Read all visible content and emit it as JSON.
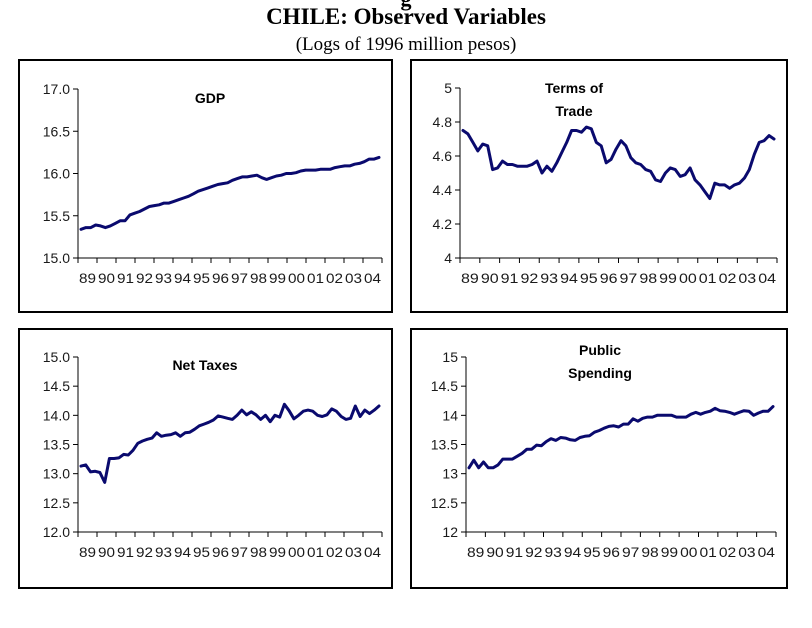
{
  "figure": {
    "title": "CHILE:  Observed Variables",
    "subtitle": "(Logs of 1996 million pesos)",
    "cut_title_fragment": "g",
    "line_color": "#0a0a6e"
  },
  "chart_data": [
    {
      "type": "line",
      "title_lines": [
        "GDP"
      ],
      "xlabel": "",
      "ylabel": "",
      "ylim": [
        15.0,
        17.0
      ],
      "yticks": [
        "15.0",
        "15.5",
        "16.0",
        "16.5",
        "17.0"
      ],
      "ytick_values": [
        15.0,
        15.5,
        16.0,
        16.5,
        17.0
      ],
      "xtick_labels": [
        "89",
        "90",
        "91",
        "92",
        "93",
        "94",
        "95",
        "96",
        "97",
        "98",
        "99",
        "00",
        "01",
        "02",
        "03",
        "04"
      ],
      "frequency": "quarterly",
      "x_start": "1989Q1",
      "series": [
        {
          "name": "GDP",
          "values": [
            15.34,
            15.36,
            15.36,
            15.39,
            15.38,
            15.36,
            15.38,
            15.41,
            15.44,
            15.44,
            15.51,
            15.53,
            15.55,
            15.58,
            15.61,
            15.62,
            15.63,
            15.65,
            15.65,
            15.67,
            15.69,
            15.71,
            15.73,
            15.76,
            15.79,
            15.81,
            15.83,
            15.85,
            15.87,
            15.88,
            15.89,
            15.92,
            15.94,
            15.96,
            15.96,
            15.97,
            15.98,
            15.95,
            15.93,
            15.95,
            15.97,
            15.98,
            16.0,
            16.0,
            16.01,
            16.03,
            16.04,
            16.04,
            16.04,
            16.05,
            16.05,
            16.05,
            16.07,
            16.08,
            16.09,
            16.09,
            16.11,
            16.12,
            16.14,
            16.17,
            16.17,
            16.19
          ]
        }
      ]
    },
    {
      "type": "line",
      "title_lines": [
        "Terms of",
        "Trade"
      ],
      "xlabel": "",
      "ylabel": "",
      "ylim": [
        4.0,
        5.0
      ],
      "yticks": [
        "4",
        "4.2",
        "4.4",
        "4.6",
        "4.8",
        "5"
      ],
      "ytick_values": [
        4.0,
        4.2,
        4.4,
        4.6,
        4.8,
        5.0
      ],
      "xtick_labels": [
        "89",
        "90",
        "91",
        "92",
        "93",
        "94",
        "95",
        "96",
        "97",
        "98",
        "99",
        "00",
        "01",
        "02",
        "03",
        "04"
      ],
      "frequency": "quarterly",
      "x_start": "1989Q1",
      "series": [
        {
          "name": "Terms of Trade",
          "values": [
            4.75,
            4.73,
            4.68,
            4.63,
            4.67,
            4.66,
            4.52,
            4.53,
            4.57,
            4.55,
            4.55,
            4.54,
            4.54,
            4.54,
            4.55,
            4.57,
            4.5,
            4.54,
            4.51,
            4.56,
            4.62,
            4.68,
            4.75,
            4.75,
            4.74,
            4.77,
            4.76,
            4.68,
            4.66,
            4.56,
            4.58,
            4.64,
            4.69,
            4.66,
            4.59,
            4.56,
            4.55,
            4.52,
            4.51,
            4.46,
            4.45,
            4.5,
            4.53,
            4.52,
            4.48,
            4.49,
            4.53,
            4.46,
            4.43,
            4.39,
            4.35,
            4.44,
            4.43,
            4.43,
            4.41,
            4.43,
            4.44,
            4.47,
            4.52,
            4.61,
            4.68,
            4.69,
            4.72,
            4.7
          ]
        }
      ]
    },
    {
      "type": "line",
      "title_lines": [
        "Net Taxes"
      ],
      "xlabel": "",
      "ylabel": "",
      "ylim": [
        12.0,
        15.0
      ],
      "yticks": [
        "12.0",
        "12.5",
        "13.0",
        "13.5",
        "14.0",
        "14.5",
        "15.0"
      ],
      "ytick_values": [
        12.0,
        12.5,
        13.0,
        13.5,
        14.0,
        14.5,
        15.0
      ],
      "xtick_labels": [
        "89",
        "90",
        "91",
        "92",
        "93",
        "94",
        "95",
        "96",
        "97",
        "98",
        "99",
        "00",
        "01",
        "02",
        "03",
        "04"
      ],
      "frequency": "quarterly",
      "x_start": "1989Q1",
      "series": [
        {
          "name": "Net Taxes",
          "values": [
            13.13,
            13.15,
            13.03,
            13.04,
            13.02,
            12.85,
            13.26,
            13.26,
            13.27,
            13.33,
            13.32,
            13.4,
            13.52,
            13.56,
            13.59,
            13.61,
            13.7,
            13.64,
            13.66,
            13.67,
            13.7,
            13.64,
            13.7,
            13.71,
            13.76,
            13.82,
            13.85,
            13.88,
            13.92,
            13.99,
            13.97,
            13.95,
            13.93,
            14.0,
            14.09,
            14.01,
            14.06,
            14.01,
            13.93,
            14.0,
            13.89,
            14.0,
            13.97,
            14.19,
            14.08,
            13.94,
            14.0,
            14.07,
            14.09,
            14.07,
            14.0,
            13.98,
            14.01,
            14.11,
            14.07,
            13.98,
            13.93,
            13.95,
            14.16,
            13.98,
            14.09,
            14.03,
            14.09,
            14.16
          ]
        }
      ]
    },
    {
      "type": "line",
      "title_lines": [
        "Public",
        "Spending"
      ],
      "xlabel": "",
      "ylabel": "",
      "ylim": [
        12.0,
        15.0
      ],
      "yticks": [
        "12",
        "12.5",
        "13",
        "13.5",
        "14",
        "14.5",
        "15"
      ],
      "ytick_values": [
        12.0,
        12.5,
        13.0,
        13.5,
        14.0,
        14.5,
        15.0
      ],
      "xtick_labels": [
        "89",
        "90",
        "91",
        "92",
        "93",
        "94",
        "95",
        "96",
        "97",
        "98",
        "99",
        "00",
        "01",
        "02",
        "03",
        "04"
      ],
      "frequency": "quarterly",
      "x_start": "1989Q1",
      "series": [
        {
          "name": "Public Spending",
          "values": [
            13.1,
            13.23,
            13.1,
            13.2,
            13.1,
            13.1,
            13.15,
            13.25,
            13.25,
            13.25,
            13.3,
            13.35,
            13.42,
            13.42,
            13.49,
            13.48,
            13.55,
            13.6,
            13.57,
            13.62,
            13.61,
            13.58,
            13.57,
            13.62,
            13.64,
            13.65,
            13.71,
            13.74,
            13.78,
            13.81,
            13.82,
            13.8,
            13.85,
            13.85,
            13.94,
            13.9,
            13.95,
            13.97,
            13.97,
            14.0,
            14.0,
            14.0,
            14.0,
            13.97,
            13.97,
            13.97,
            14.02,
            14.05,
            14.02,
            14.05,
            14.07,
            14.12,
            14.08,
            14.07,
            14.05,
            14.02,
            14.05,
            14.08,
            14.07,
            14.0,
            14.04,
            14.07,
            14.07,
            14.15
          ]
        }
      ]
    }
  ]
}
